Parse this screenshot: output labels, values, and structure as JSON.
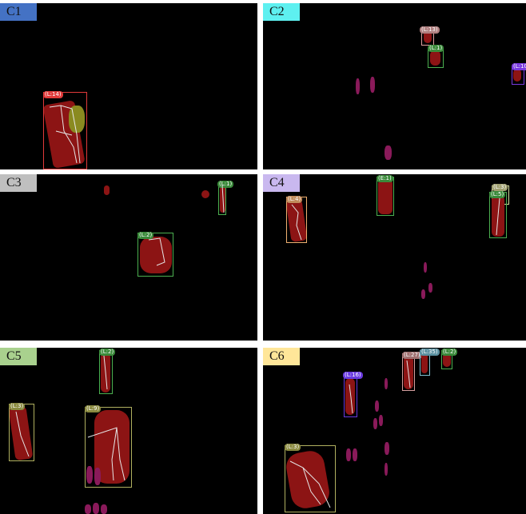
{
  "panels": {
    "c1": {
      "label": "C1",
      "color": "#4472c4"
    },
    "c2": {
      "label": "C2",
      "color": "#5ef0f0"
    },
    "c3": {
      "label": "C3",
      "color": "#bfbfbf"
    },
    "c4": {
      "label": "C4",
      "color": "#c9b8ef"
    },
    "c5": {
      "label": "C5",
      "color": "#a9d18e"
    },
    "c6": {
      "label": "C6",
      "color": "#ffe699"
    }
  },
  "tracks": {
    "c1_l14": "(L:14)",
    "c2_l13": "(L:13)",
    "c2_l1": "(L:1)",
    "c2_l10": "(L:10)",
    "c3_l1": "(L:1)",
    "c3_l2": "(L:2)",
    "c4_l4": "(L:4)",
    "c4_e1": "(E:1)",
    "c4_l3": "(L:3)",
    "c4_l5": "(L:5)",
    "c5_l2": "(L:2)",
    "c5_l3": "(L:3)",
    "c5_l9": "(L:9)",
    "c6_l16": "(L:16)",
    "c6_l27": "(L:27)",
    "c6_l35": "(L:35)",
    "c6_l2": "(L:2)",
    "c6_l3": "(L:3)"
  }
}
